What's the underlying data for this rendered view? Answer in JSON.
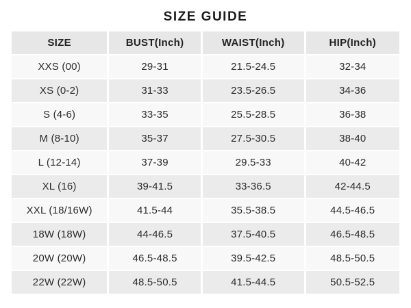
{
  "page_title": "SIZE GUIDE",
  "table": {
    "columns": [
      "SIZE",
      "BUST(Inch)",
      "WAIST(Inch)",
      "HIP(Inch)"
    ],
    "column_keys": [
      "size",
      "bust",
      "waist",
      "hip"
    ],
    "rows": [
      [
        "XXS (00)",
        "29-31",
        "21.5-24.5",
        "32-34"
      ],
      [
        "XS (0-2)",
        "31-33",
        "23.5-26.5",
        "34-36"
      ],
      [
        "S (4-6)",
        "33-35",
        "25.5-28.5",
        "36-38"
      ],
      [
        "M (8-10)",
        "35-37",
        "27.5-30.5",
        "38-40"
      ],
      [
        "L (12-14)",
        "37-39",
        "29.5-33",
        "40-42"
      ],
      [
        "XL (16)",
        "39-41.5",
        "33-36.5",
        "42-44.5"
      ],
      [
        "XXL (18/16W)",
        "41.5-44",
        "35.5-38.5",
        "44.5-46.5"
      ],
      [
        "18W (18W)",
        "44-46.5",
        "37.5-40.5",
        "46.5-48.5"
      ],
      [
        "20W (20W)",
        "46.5-48.5",
        "39.5-42.5",
        "48.5-50.5"
      ],
      [
        "22W (22W)",
        "48.5-50.5",
        "41.5-44.5",
        "50.5-52.5"
      ]
    ]
  },
  "colors": {
    "header_bg": "#e7e7e7",
    "row_odd_bg": "#f8f8f8",
    "row_even_bg": "#ebebeb",
    "background": "#ffffff",
    "text": "#2b2b2b"
  }
}
